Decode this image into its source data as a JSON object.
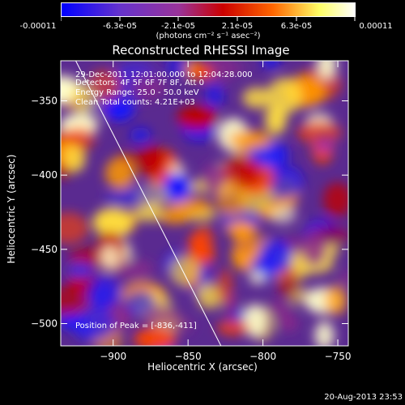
{
  "colorbar": {
    "tick_labels": [
      "-0.00011",
      "-6.3e-05",
      "-2.1e-05",
      "2.1e-05",
      "6.3e-05",
      "0.00011"
    ],
    "units_label": "(photons cm⁻² s⁻¹ asec⁻²)",
    "colors": [
      "#0000ff",
      "#6633cc",
      "#993399",
      "#cc0000",
      "#ff6600",
      "#ffff66",
      "#ffffff"
    ],
    "range": [
      -0.00011,
      0.00011
    ]
  },
  "info": {
    "line1": "29-Dec-2011 12:01:00.000 to 12:04:28.000",
    "line2": "Detectors: 4F 5F 6F 7F 8F, Att 0",
    "line3": "Energy Range: 25.0 - 50.0 keV",
    "line4": "Clean    Total counts: 4.21E+03"
  },
  "peak_text": "Position of Peak = [-836,-411]",
  "footer_date": "20-Aug-2013 23:53",
  "chart_data": {
    "type": "heatmap",
    "title": "Reconstructed RHESSI Image",
    "xlabel": "Heliocentric X (arcsec)",
    "ylabel": "Heliocentric Y (arcsec)",
    "xlim": [
      -935,
      -743
    ],
    "ylim": [
      -515,
      -323
    ],
    "x_ticks": [
      -900,
      -850,
      -800,
      -750
    ],
    "y_ticks": [
      -350,
      -400,
      -450,
      -500
    ],
    "x_tick_labels": [
      "−900",
      "−850",
      "−800",
      "−750"
    ],
    "y_tick_labels": [
      "−350",
      "−400",
      "−450",
      "−500"
    ],
    "limb_line": [
      [
        -925,
        -323
      ],
      [
        -828,
        -515
      ]
    ],
    "grid": false,
    "peak": [
      -836,
      -411
    ]
  }
}
